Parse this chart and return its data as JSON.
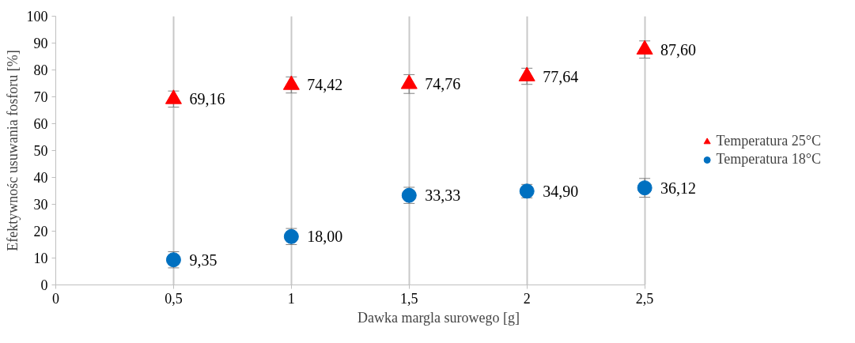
{
  "chart_data": {
    "type": "scatter",
    "xlabel": "Dawka margla surowego [g]",
    "ylabel": "Efektywnośc usuwania fosforu [%]",
    "x": [
      0.5,
      1,
      1.5,
      2,
      2.5
    ],
    "series": [
      {
        "name": "Temperatura 25°C",
        "color": "#ff0000",
        "marker": "triangle",
        "values": [
          69.16,
          74.42,
          74.76,
          77.64,
          87.6
        ],
        "errors": [
          3,
          3,
          3.5,
          3,
          3.2
        ],
        "value_labels": [
          "69,16",
          "74,42",
          "74,76",
          "77,64",
          "87,60"
        ]
      },
      {
        "name": "Temperatura 18°C",
        "color": "#0070c0",
        "marker": "circle",
        "values": [
          9.35,
          18.0,
          33.33,
          34.9,
          36.12
        ],
        "errors": [
          3,
          3,
          3,
          2.5,
          3.5
        ],
        "value_labels": [
          "9,35",
          "18,00",
          "33,33",
          "34,90",
          "36,12"
        ]
      }
    ],
    "xlim": [
      0,
      2.5
    ],
    "xticks": [
      0,
      {
        "value": 0.5,
        "label": "0,5"
      },
      1,
      {
        "value": 1.5,
        "label": "1,5"
      },
      2,
      {
        "value": 2.5,
        "label": "2,5"
      }
    ],
    "ylim": [
      0,
      100
    ],
    "yticks": [
      0,
      10,
      20,
      30,
      40,
      50,
      60,
      70,
      80,
      90,
      100
    ],
    "grid": "x",
    "legend": "right"
  }
}
